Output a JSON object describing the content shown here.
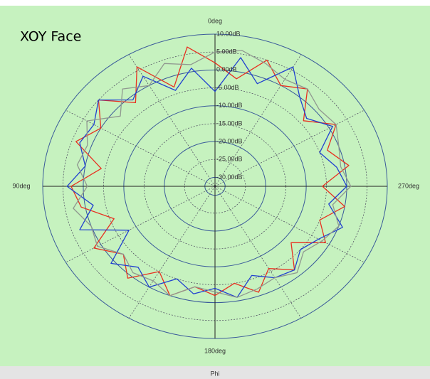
{
  "chart_data": {
    "type": "polar",
    "annotation": "XOY Face",
    "xlabel": "Phi",
    "theta": [
      0,
      10,
      20,
      30,
      40,
      50,
      60,
      70,
      80,
      90,
      100,
      110,
      120,
      130,
      140,
      150,
      160,
      170,
      180,
      190,
      200,
      210,
      220,
      230,
      240,
      250,
      260,
      270,
      280,
      290,
      300,
      310,
      320,
      330,
      340,
      350
    ],
    "rlim": [
      -32.5,
      10
    ],
    "rticks": [
      {
        "value": 10,
        "label": "10.00dB"
      },
      {
        "value": 5,
        "label": "5.00dB"
      },
      {
        "value": 0,
        "label": "0.00dB"
      },
      {
        "value": -5,
        "label": "-5.00dB"
      },
      {
        "value": -10,
        "label": "-10.00dB"
      },
      {
        "value": -15,
        "label": "-15.00dB"
      },
      {
        "value": -20,
        "label": "-20.00dB"
      },
      {
        "value": -25,
        "label": "-25.00dB"
      },
      {
        "value": -30,
        "label": "-30.00dB"
      }
    ],
    "thetaticks": [
      {
        "value": 0,
        "label": "0deg"
      },
      {
        "value": 90,
        "label": "90deg"
      },
      {
        "value": 180,
        "label": "180deg"
      },
      {
        "value": 270,
        "label": "270deg"
      }
    ],
    "thetagrid": [
      30,
      60,
      120,
      150,
      210,
      240,
      300,
      330
    ],
    "series": [
      {
        "color": "#e83020",
        "values": [
          2,
          7,
          -3,
          6,
          -2,
          5,
          0,
          4,
          -4,
          3,
          1,
          -6,
          2,
          -3,
          1,
          -5,
          0,
          -4,
          -2,
          -5,
          -1,
          -6,
          -2,
          -8,
          -1,
          -5,
          0,
          -6,
          1,
          -3,
          2,
          -4,
          3,
          0,
          5,
          -2
        ]
      },
      {
        "color": "#2040d0",
        "values": [
          -6,
          1,
          -4,
          3,
          -1,
          5,
          2,
          3,
          0,
          4,
          -2,
          3,
          -8,
          1,
          -3,
          0,
          -5,
          -2,
          -4,
          -1,
          -6,
          -3,
          -2,
          -5,
          -3,
          1,
          -4,
          0,
          -2,
          -5,
          1,
          -3,
          0,
          6,
          -2,
          4
        ]
      },
      {
        "color": "#909890",
        "values": [
          5,
          2,
          4,
          0,
          3,
          -2,
          4,
          1,
          2,
          -1,
          3,
          0,
          1,
          -3,
          -1,
          -2,
          0,
          -4,
          -3,
          -1,
          -2,
          -3,
          -1,
          -4,
          -2,
          0,
          -3,
          1,
          -1,
          0,
          2,
          1,
          3,
          2,
          4,
          6
        ]
      }
    ]
  }
}
